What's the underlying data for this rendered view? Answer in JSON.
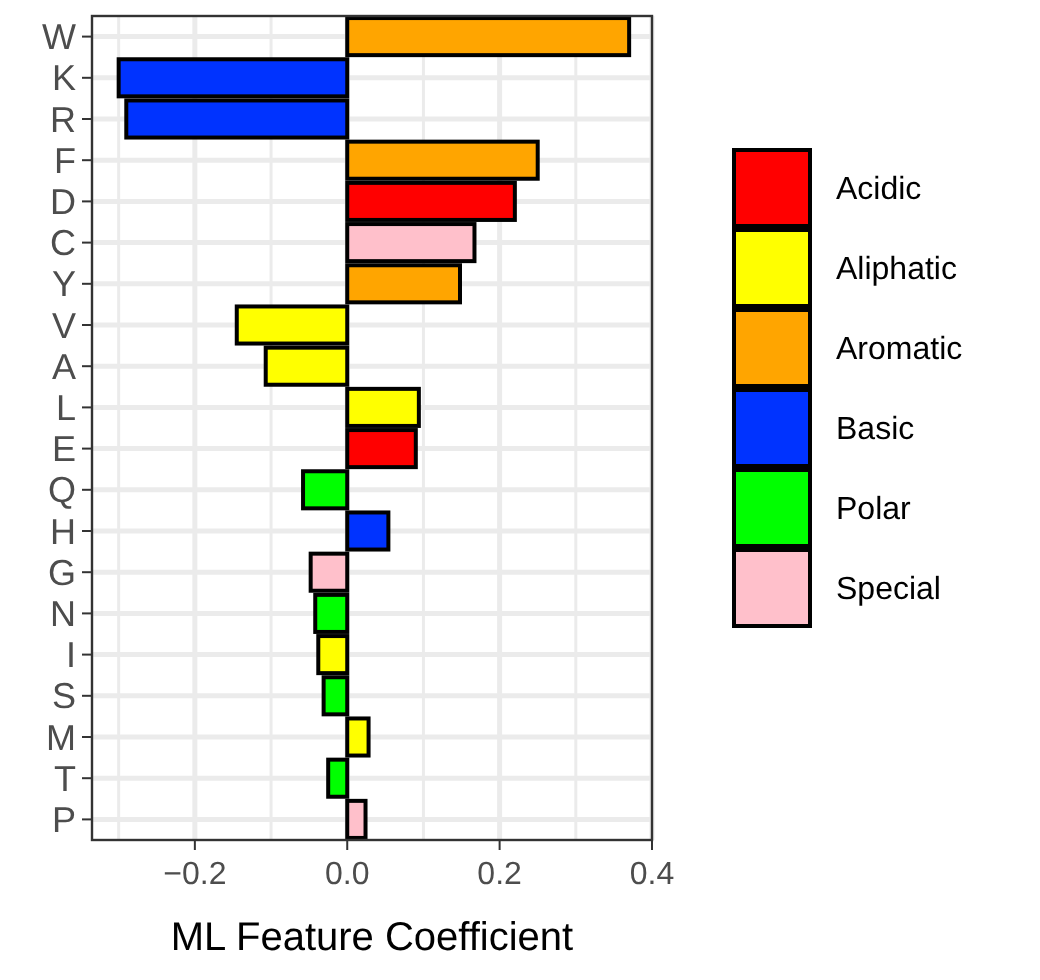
{
  "chart_data": {
    "type": "bar",
    "orientation": "horizontal",
    "xlabel": "ML Feature Coefficient",
    "categories": [
      "W",
      "K",
      "R",
      "F",
      "D",
      "C",
      "Y",
      "V",
      "A",
      "L",
      "E",
      "Q",
      "H",
      "G",
      "N",
      "I",
      "S",
      "M",
      "T",
      "P"
    ],
    "series": [
      {
        "name": "Acidic",
        "color": "#ff0000",
        "values": [
          null,
          null,
          null,
          null,
          0.22,
          null,
          null,
          null,
          null,
          null,
          0.09,
          null,
          null,
          null,
          null,
          null,
          null,
          null,
          null,
          null
        ]
      },
      {
        "name": "Aliphatic",
        "color": "#ffff00",
        "values": [
          null,
          null,
          null,
          null,
          null,
          null,
          null,
          -0.145,
          -0.107,
          0.094,
          null,
          null,
          null,
          null,
          null,
          -0.038,
          null,
          0.028,
          null,
          null
        ]
      },
      {
        "name": "Aromatic",
        "color": "#ffa500",
        "values": [
          0.37,
          null,
          null,
          0.25,
          null,
          null,
          0.148,
          null,
          null,
          null,
          null,
          null,
          null,
          null,
          null,
          null,
          null,
          null,
          null,
          null
        ]
      },
      {
        "name": "Basic",
        "color": "#0033ff",
        "values": [
          null,
          -0.3,
          -0.29,
          null,
          null,
          null,
          null,
          null,
          null,
          null,
          null,
          null,
          0.054,
          null,
          null,
          null,
          null,
          null,
          null,
          null
        ]
      },
      {
        "name": "Polar",
        "color": "#00ff00",
        "values": [
          null,
          null,
          null,
          null,
          null,
          null,
          null,
          null,
          null,
          null,
          null,
          -0.058,
          null,
          null,
          -0.042,
          null,
          -0.031,
          null,
          -0.025,
          null
        ]
      },
      {
        "name": "Special",
        "color": "#ffc0cb",
        "values": [
          null,
          null,
          null,
          null,
          null,
          0.167,
          null,
          null,
          null,
          null,
          null,
          null,
          null,
          -0.048,
          null,
          null,
          null,
          null,
          null,
          0.024
        ]
      }
    ],
    "xlim": [
      -0.335,
      0.4
    ],
    "xticks": [
      {
        "value": -0.2,
        "label": "−0.2"
      },
      {
        "value": 0,
        "label": "0.0"
      },
      {
        "value": 0.2,
        "label": "0.2"
      },
      {
        "value": 0.4,
        "label": "0.4"
      }
    ],
    "grid": true,
    "legend": "right"
  }
}
